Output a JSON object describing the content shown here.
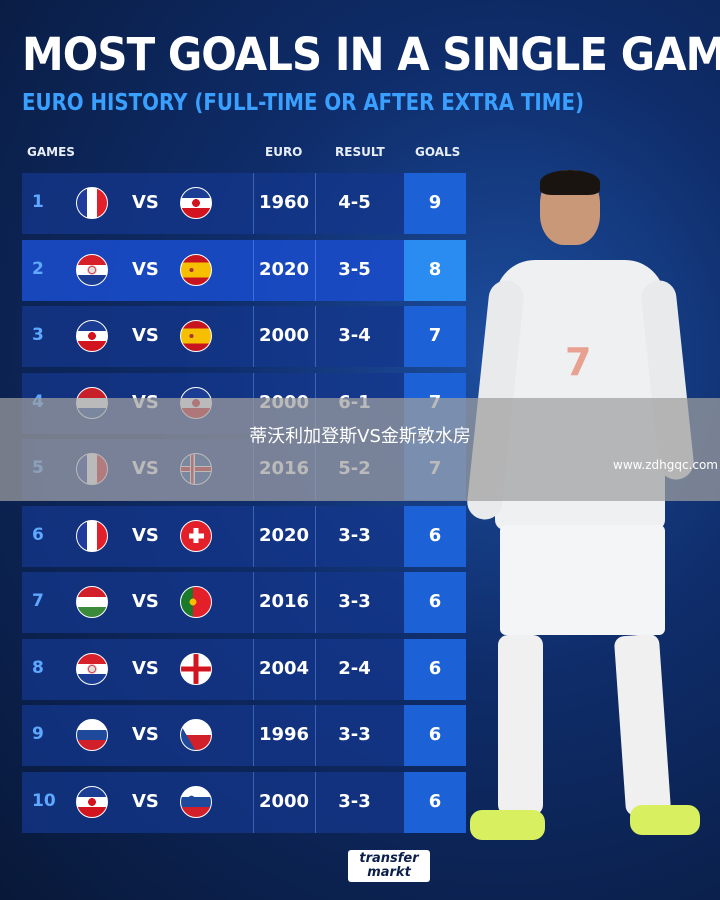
{
  "title": "MOST GOALS IN A SINGLE GAME",
  "subtitle": "EURO HISTORY (FULL-TIME OR AFTER EXTRA TIME)",
  "headers": {
    "games": "GAMES",
    "euro": "EURO",
    "result": "RESULT",
    "goals": "GOALS"
  },
  "vs": "VS",
  "rows": [
    {
      "rank": "1",
      "home": "flag-france",
      "away": "flag-yugoslavia",
      "euro": "1960",
      "result": "4-5",
      "goals": "9"
    },
    {
      "rank": "2",
      "home": "flag-croatia",
      "away": "flag-spain",
      "euro": "2020",
      "result": "3-5",
      "goals": "8"
    },
    {
      "rank": "3",
      "home": "flag-yugoslavia",
      "away": "flag-spain",
      "euro": "2000",
      "result": "3-4",
      "goals": "7"
    },
    {
      "rank": "4",
      "home": "flag-netherlands",
      "away": "flag-yugoslavia",
      "euro": "2000",
      "result": "6-1",
      "goals": "7"
    },
    {
      "rank": "5",
      "home": "flag-france",
      "away": "flag-iceland",
      "euro": "2016",
      "result": "5-2",
      "goals": "7"
    },
    {
      "rank": "6",
      "home": "flag-france",
      "away": "flag-switzerland",
      "euro": "2020",
      "result": "3-3",
      "goals": "6"
    },
    {
      "rank": "7",
      "home": "flag-hungary",
      "away": "flag-portugal",
      "euro": "2016",
      "result": "3-3",
      "goals": "6"
    },
    {
      "rank": "8",
      "home": "flag-croatia",
      "away": "flag-england",
      "euro": "2004",
      "result": "2-4",
      "goals": "6"
    },
    {
      "rank": "9",
      "home": "flag-russia",
      "away": "flag-czech-republic",
      "euro": "1996",
      "result": "3-3",
      "goals": "6"
    },
    {
      "rank": "10",
      "home": "flag-yugoslavia",
      "away": "flag-slovenia",
      "euro": "2000",
      "result": "3-3",
      "goals": "6"
    }
  ],
  "overlay": {
    "text": "蒂沃利加登斯VS金斯敦水房",
    "watermark": "www.zdhgqc.com"
  },
  "logo": {
    "line1": "transfer",
    "line2": "markt"
  },
  "player": {
    "shirt_number": "7"
  },
  "colors": {
    "accent": "#3aa0ff",
    "goals_col": "#1c62d6"
  }
}
